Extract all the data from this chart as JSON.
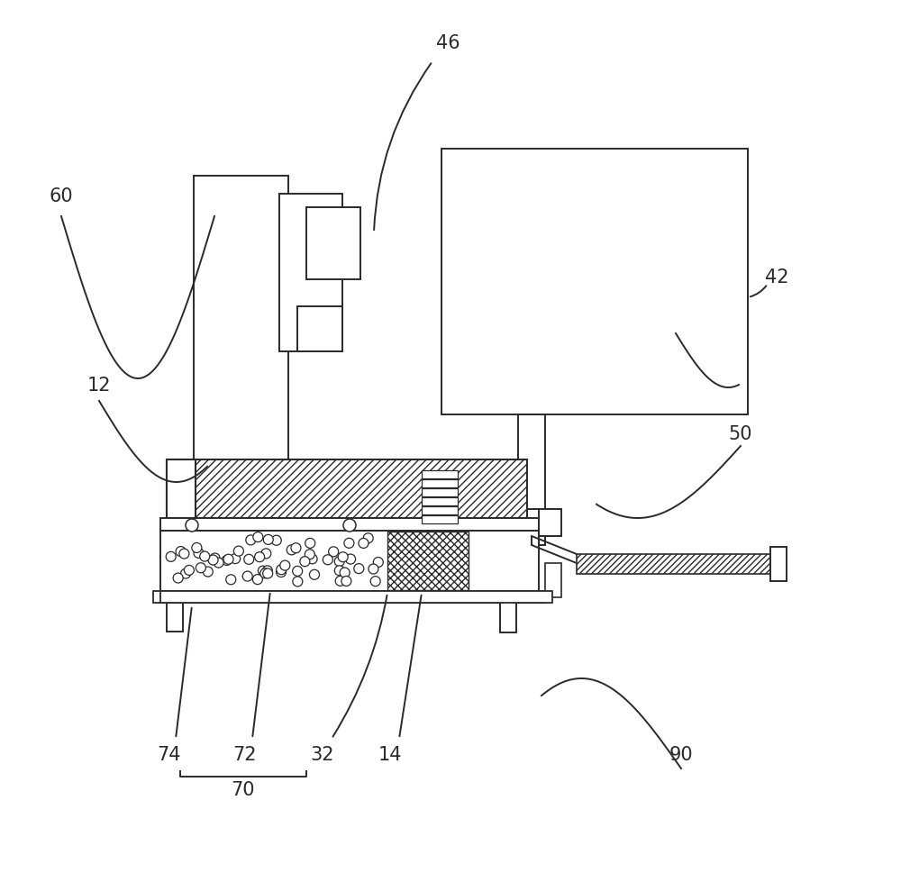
{
  "bg_color": "#ffffff",
  "line_color": "#2a2a2a",
  "figsize": [
    10.0,
    9.69
  ],
  "dpi": 100,
  "label_fs": 15,
  "lw": 1.4
}
